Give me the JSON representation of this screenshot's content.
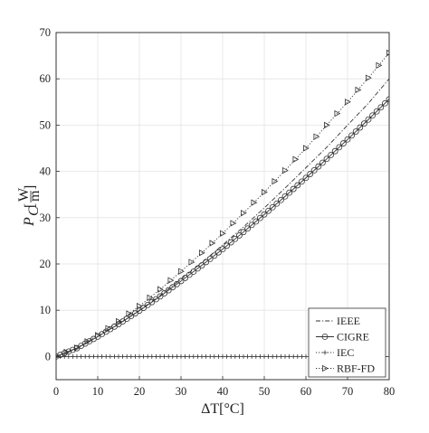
{
  "chart_data": {
    "type": "line",
    "xlabel": "ΔT[°C]",
    "ylabel": "P_C[W/m]",
    "xlim": [
      0,
      80
    ],
    "ylim": [
      -5,
      70
    ],
    "xticks": [
      0,
      10,
      20,
      30,
      40,
      50,
      60,
      70,
      80
    ],
    "yticks": [
      0,
      10,
      20,
      30,
      40,
      50,
      60,
      70
    ],
    "grid": true,
    "legend_position": "bottom-right",
    "series": [
      {
        "name": "IEEE",
        "style": "dash-dot",
        "marker": "none",
        "x": [
          0,
          5,
          10,
          15,
          20,
          25,
          30,
          35,
          40,
          45,
          50,
          55,
          60,
          65,
          70,
          75,
          80
        ],
        "y": [
          0,
          1.8,
          4.3,
          7.0,
          10.0,
          13.2,
          16.7,
          20.3,
          24.1,
          28.0,
          32.1,
          36.4,
          40.8,
          45.2,
          50.0,
          54.7,
          60.0
        ]
      },
      {
        "name": "CIGRE",
        "style": "solid",
        "marker": "circle",
        "x": [
          0,
          5,
          10,
          15,
          20,
          25,
          30,
          35,
          40,
          45,
          50,
          55,
          60,
          65,
          70,
          75,
          80
        ],
        "y": [
          0,
          1.8,
          4.3,
          7.0,
          9.9,
          13.0,
          16.3,
          19.7,
          23.2,
          26.9,
          30.7,
          34.6,
          38.6,
          42.7,
          46.9,
          51.2,
          55.6
        ]
      },
      {
        "name": "IEC",
        "style": "dotted",
        "marker": "plus",
        "x": [
          0,
          10,
          20,
          30,
          40,
          50,
          60,
          70,
          80
        ],
        "y": [
          0,
          0,
          0,
          0,
          0,
          0,
          0,
          0,
          0
        ]
      },
      {
        "name": "RBF-FD",
        "style": "dotted",
        "marker": "triangle-right",
        "x": [
          0,
          5,
          10,
          15,
          20,
          25,
          30,
          35,
          40,
          45,
          50,
          55,
          60,
          65,
          70,
          75,
          80
        ],
        "y": [
          0,
          1.9,
          4.6,
          7.6,
          10.9,
          14.5,
          18.4,
          22.4,
          26.6,
          31.0,
          35.5,
          40.2,
          45.0,
          50.0,
          55.0,
          60.2,
          65.6
        ]
      }
    ]
  }
}
